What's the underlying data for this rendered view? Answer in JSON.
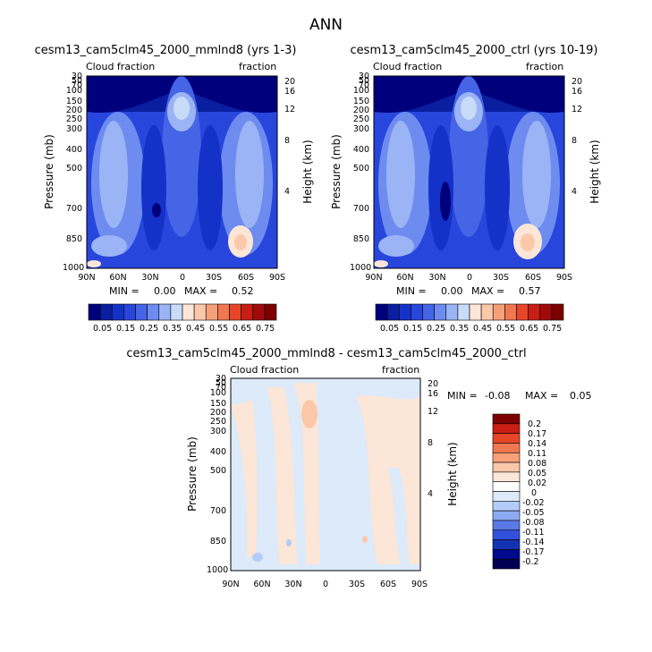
{
  "main_title": "ANN",
  "chart_data": [
    {
      "type": "heatmap",
      "title": "cesm13_cam5clm45_2000_mmlnd8 (yrs 1-3)",
      "left_label": "Cloud fraction",
      "right_label": "fraction",
      "ylabel": "Pressure (mb)",
      "ylabel_right": "Height (km)",
      "x_ticks": [
        "90N",
        "60N",
        "30N",
        "0",
        "30S",
        "60S",
        "90S"
      ],
      "y_ticks": [
        "30",
        "50",
        "70",
        "100",
        "150",
        "200",
        "250",
        "300",
        "400",
        "500",
        "700",
        "850",
        "1000"
      ],
      "y_ticks_right": [
        "20",
        "16",
        "12",
        "8",
        "4"
      ],
      "min_label": "MIN =",
      "min_value": "0.00",
      "max_label": "MAX =",
      "max_value": "0.52",
      "colorbar_ticks": [
        "0.05",
        "0.15",
        "0.25",
        "0.35",
        "0.45",
        "0.55",
        "0.65",
        "0.75"
      ]
    },
    {
      "type": "heatmap",
      "title": "cesm13_cam5clm45_2000_ctrl (yrs 10-19)",
      "left_label": "Cloud fraction",
      "right_label": "fraction",
      "ylabel": "Pressure (mb)",
      "ylabel_right": "Height (km)",
      "x_ticks": [
        "90N",
        "60N",
        "30N",
        "0",
        "30S",
        "60S",
        "90S"
      ],
      "y_ticks": [
        "30",
        "50",
        "70",
        "100",
        "150",
        "200",
        "250",
        "300",
        "400",
        "500",
        "700",
        "850",
        "1000"
      ],
      "y_ticks_right": [
        "20",
        "16",
        "12",
        "8",
        "4"
      ],
      "min_label": "MIN =",
      "min_value": "0.00",
      "max_label": "MAX =",
      "max_value": "0.57",
      "colorbar_ticks": [
        "0.05",
        "0.15",
        "0.25",
        "0.35",
        "0.45",
        "0.55",
        "0.65",
        "0.75"
      ]
    },
    {
      "type": "heatmap",
      "title": "cesm13_cam5clm45_2000_mmlnd8 - cesm13_cam5clm45_2000_ctrl",
      "left_label": "Cloud fraction",
      "right_label": "fraction",
      "ylabel": "Pressure (mb)",
      "ylabel_right": "Height (km)",
      "x_ticks": [
        "90N",
        "60N",
        "30N",
        "0",
        "30S",
        "60S",
        "90S"
      ],
      "y_ticks": [
        "30",
        "50",
        "70",
        "100",
        "150",
        "200",
        "250",
        "300",
        "400",
        "500",
        "700",
        "850",
        "1000"
      ],
      "y_ticks_right": [
        "20",
        "16",
        "12",
        "8",
        "4"
      ],
      "min_label": "MIN =",
      "min_value": "-0.08",
      "max_label": "MAX =",
      "max_value": "0.05",
      "colorbar_ticks": [
        "0.2",
        "0.17",
        "0.14",
        "0.11",
        "0.08",
        "0.05",
        "0.02",
        "0",
        "-0.02",
        "-0.05",
        "-0.08",
        "-0.11",
        "-0.14",
        "-0.17",
        "-0.2"
      ]
    }
  ],
  "palette_abs": [
    "#00007d",
    "#0a1ea0",
    "#1432c8",
    "#2846dc",
    "#4664e6",
    "#6e8cf0",
    "#9bb4f5",
    "#c8dcfa",
    "#fce6d7",
    "#fbc8aa",
    "#f6a078",
    "#f07850",
    "#e64628",
    "#c81e14",
    "#a00a0a",
    "#7d0000"
  ],
  "palette_diff": [
    "#7d0000",
    "#c81e14",
    "#e64628",
    "#f07850",
    "#f6a078",
    "#fbc8aa",
    "#fce6d7",
    "#ffffff",
    "#dceafa",
    "#b4ccf8",
    "#8caaf0",
    "#5a78e6",
    "#3250dc",
    "#1432b4",
    "#000a8c",
    "#000050"
  ]
}
